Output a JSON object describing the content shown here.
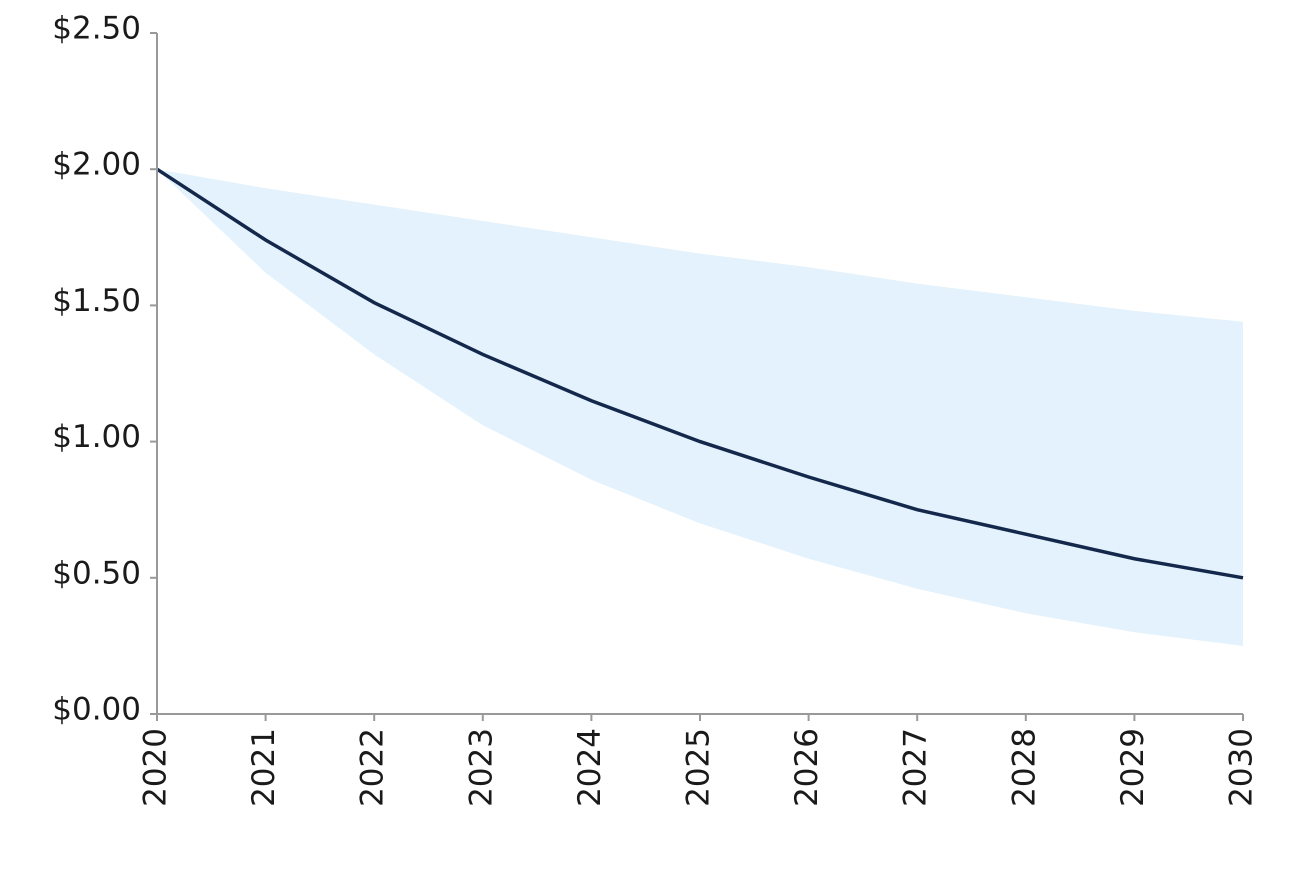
{
  "chart_data": {
    "type": "line",
    "x": [
      2020,
      2021,
      2022,
      2023,
      2024,
      2025,
      2026,
      2027,
      2028,
      2029,
      2030
    ],
    "series": [
      {
        "color": "#14284b",
        "values": [
          2.0,
          1.74,
          1.51,
          1.32,
          1.15,
          1.0,
          0.87,
          0.75,
          0.66,
          0.57,
          0.5
        ]
      }
    ],
    "band": {
      "color": "#e3f2fc",
      "upper": [
        2.0,
        1.93,
        1.87,
        1.81,
        1.75,
        1.69,
        1.64,
        1.58,
        1.53,
        1.48,
        1.44
      ],
      "lower": [
        2.0,
        1.62,
        1.32,
        1.06,
        0.86,
        0.7,
        0.57,
        0.46,
        0.37,
        0.3,
        0.25
      ]
    },
    "xlim": [
      2020,
      2030
    ],
    "xticks": [
      2020,
      2021,
      2022,
      2023,
      2024,
      2025,
      2026,
      2027,
      2028,
      2029,
      2030
    ],
    "ylim": [
      0,
      2.5
    ],
    "yticks": [
      {
        "value": 0,
        "label": "$0.00"
      },
      {
        "value": 0.5,
        "label": "$0.50"
      },
      {
        "value": 1,
        "label": "$1.00"
      },
      {
        "value": 1.5,
        "label": "$1.50"
      },
      {
        "value": 2,
        "label": "$2.00"
      },
      {
        "value": 2.5,
        "label": "$2.50"
      }
    ]
  }
}
